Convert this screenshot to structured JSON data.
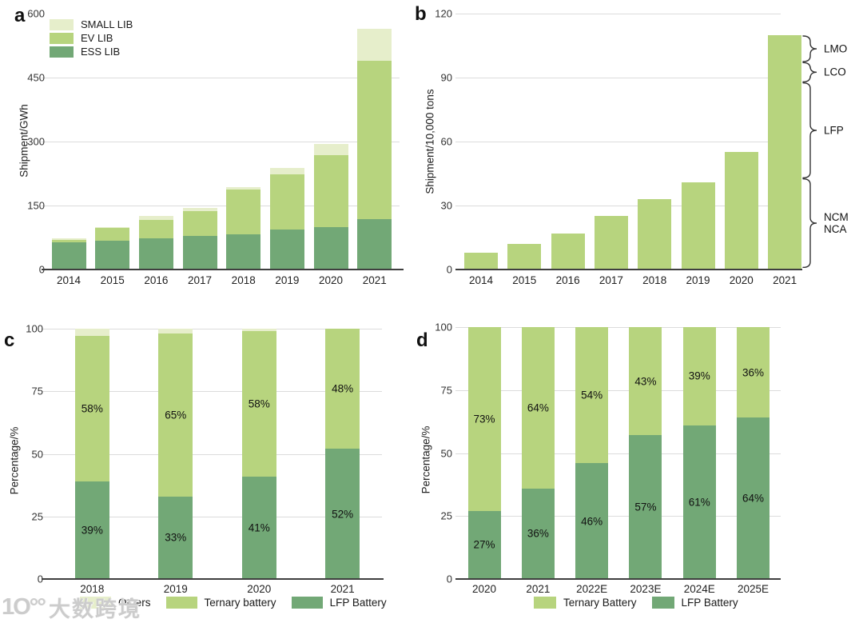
{
  "watermark": {
    "logo": "1O°°",
    "text": "大数跨境"
  },
  "colors": {
    "light_green": "#e6eecb",
    "mid_green": "#b7d47e",
    "dark_green": "#72a876",
    "gridline": "#dcdcdc",
    "axis": "#3f3f3f"
  },
  "chart_data": [
    {
      "panel_label": "a",
      "type": "bar",
      "stacked": true,
      "ylabel": "Shipment/GWh",
      "ylim": [
        0,
        600
      ],
      "yticks": [
        0,
        150,
        300,
        450,
        600
      ],
      "gridlines": [
        150,
        300,
        450
      ],
      "categories": [
        "2014",
        "2015",
        "2016",
        "2017",
        "2018",
        "2019",
        "2020",
        "2021"
      ],
      "series": [
        {
          "name": "ESS LIB",
          "color": "#72a876",
          "values": [
            64,
            68,
            74,
            79,
            83,
            94,
            99,
            119
          ]
        },
        {
          "name": "EV LIB",
          "color": "#b7d47e",
          "values": [
            5,
            29,
            43,
            57,
            105,
            130,
            170,
            371
          ]
        },
        {
          "name": "SMALL LIB",
          "color": "#e6eecb",
          "values": [
            5,
            3,
            8,
            8,
            5,
            14,
            26,
            75
          ]
        }
      ],
      "legend": {
        "position": "top-left-vertical",
        "items": [
          {
            "label": "SMALL LIB",
            "color": "#e6eecb"
          },
          {
            "label": "EV LIB",
            "color": "#b7d47e"
          },
          {
            "label": "ESS LIB",
            "color": "#72a876"
          }
        ]
      }
    },
    {
      "panel_label": "b",
      "type": "bar",
      "stacked": false,
      "ylabel": "Shipment/10,000 tons",
      "ylim": [
        0,
        120
      ],
      "yticks": [
        0,
        30,
        60,
        90,
        120
      ],
      "gridlines": [
        30,
        60,
        90,
        120
      ],
      "categories": [
        "2014",
        "2015",
        "2016",
        "2017",
        "2018",
        "2019",
        "2020",
        "2021"
      ],
      "series": [
        {
          "name": "",
          "color": "#b7d47e",
          "values": [
            8,
            12,
            17,
            25,
            33,
            41,
            55,
            110
          ]
        }
      ],
      "annotations": [
        {
          "label": "LMO",
          "from": 97.5,
          "to": 109.5
        },
        {
          "label": "LCO",
          "from": 88,
          "to": 97
        },
        {
          "label": "LFP",
          "from": 43,
          "to": 87.5
        },
        {
          "label": "NCM\nNCA",
          "from": 1,
          "to": 42.5
        }
      ]
    },
    {
      "panel_label": "c",
      "type": "bar",
      "stacked": true,
      "ylabel": "Percentage/%",
      "ylim": [
        0,
        100
      ],
      "yticks": [
        0,
        25,
        50,
        75,
        100
      ],
      "gridlines": [
        25,
        50,
        75,
        100
      ],
      "categories": [
        "2018",
        "2019",
        "2020",
        "2021"
      ],
      "series": [
        {
          "name": "LFP Battery",
          "color": "#72a876",
          "values": [
            39,
            33,
            41,
            52
          ],
          "labels": [
            "39%",
            "33%",
            "41%",
            "52%"
          ]
        },
        {
          "name": "Ternary battery",
          "color": "#b7d47e",
          "values": [
            58,
            65,
            58,
            48
          ],
          "labels": [
            "58%",
            "65%",
            "58%",
            "48%"
          ]
        },
        {
          "name": "Others",
          "color": "#e6eecb",
          "values": [
            3,
            2,
            1,
            0
          ]
        }
      ],
      "legend": {
        "position": "bottom-horizontal",
        "items": [
          {
            "label": "Others",
            "color": "#e6eecb"
          },
          {
            "label": "Ternary battery",
            "color": "#b7d47e"
          },
          {
            "label": "LFP Battery",
            "color": "#72a876"
          }
        ]
      }
    },
    {
      "panel_label": "d",
      "type": "bar",
      "stacked": true,
      "ylabel": "Percentage/%",
      "ylim": [
        0,
        100
      ],
      "yticks": [
        0,
        25,
        50,
        75,
        100
      ],
      "gridlines": [
        25,
        50,
        75,
        100
      ],
      "categories": [
        "2020",
        "2021",
        "2022E",
        "2023E",
        "2024E",
        "2025E"
      ],
      "series": [
        {
          "name": "LFP Battery",
          "color": "#72a876",
          "values": [
            27,
            36,
            46,
            57,
            61,
            64
          ],
          "labels": [
            "27%",
            "36%",
            "46%",
            "57%",
            "61%",
            "64%"
          ]
        },
        {
          "name": "Ternary Battery",
          "color": "#b7d47e",
          "values": [
            73,
            64,
            54,
            43,
            39,
            36
          ],
          "labels": [
            "73%",
            "64%",
            "54%",
            "43%",
            "39%",
            "36%"
          ]
        }
      ],
      "legend": {
        "position": "bottom-horizontal",
        "items": [
          {
            "label": "Ternary Battery",
            "color": "#b7d47e"
          },
          {
            "label": "LFP Battery",
            "color": "#72a876"
          }
        ]
      }
    }
  ]
}
